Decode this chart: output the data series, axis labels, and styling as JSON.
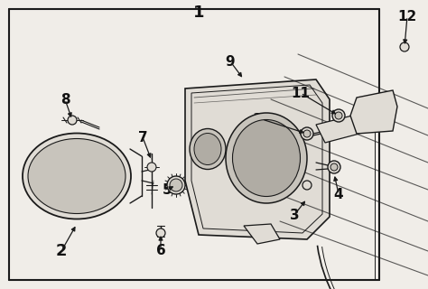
{
  "bg": "#f0ede8",
  "lc": "#1a1a1a",
  "fc_light": "#e0dcd5",
  "fc_mid": "#c8c4bc",
  "fc_dark": "#b0aca4",
  "border": "#2a2a2a"
}
